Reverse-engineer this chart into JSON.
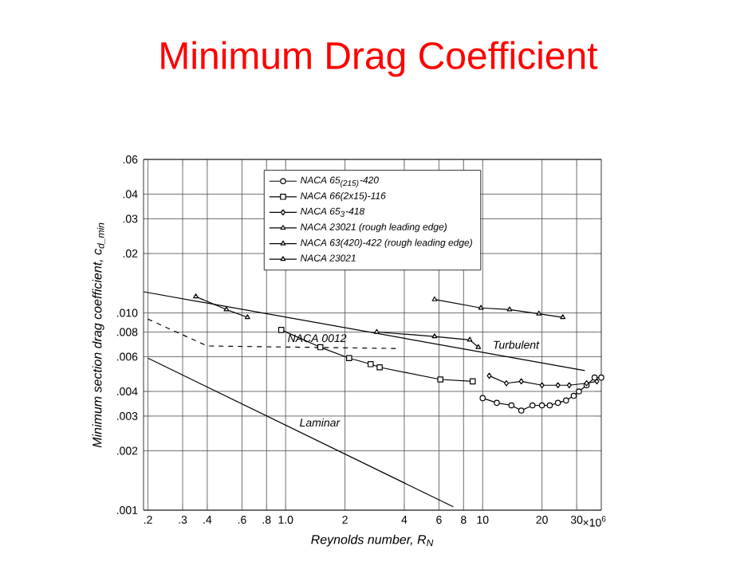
{
  "chart_data": {
    "type": "line",
    "title": "Minimum Drag Coefficient",
    "xlabel": "Reynolds number, R$_{N}$",
    "ylabel": "Minimum section drag coefficient, c$_{d_min}$",
    "log": "xy",
    "grid": true,
    "legend": "top",
    "xlim": [
      0.19,
      40
    ],
    "ylim": [
      0.001,
      0.06
    ],
    "xticks": [
      {
        "value": 0.2,
        "label": ".2"
      },
      {
        "value": 0.3,
        "label": ".3"
      },
      {
        "value": 0.4,
        "label": ".4"
      },
      {
        "value": 0.6,
        "label": ".6"
      },
      {
        "value": 0.8,
        "label": ".8"
      },
      {
        "value": 1,
        "label": "1.0"
      },
      2,
      4,
      6,
      8,
      10,
      20,
      30
    ],
    "yticks": [
      {
        "value": 0.001,
        "label": ".001"
      },
      {
        "value": 0.002,
        "label": ".002"
      },
      {
        "value": 0.003,
        "label": ".003"
      },
      {
        "value": 0.004,
        "label": ".004"
      },
      {
        "value": 0.006,
        "label": ".006"
      },
      {
        "value": 0.008,
        "label": ".008"
      },
      {
        "value": 0.01,
        "label": ".010"
      },
      {
        "value": 0.02,
        "label": ".02"
      },
      {
        "value": 0.03,
        "label": ".03"
      },
      {
        "value": 0.04,
        "label": ".04"
      },
      {
        "value": 0.06,
        "label": ".06"
      }
    ],
    "series": [
      {
        "name": "NACA 65$_{(215)}$-420",
        "color": "#000000",
        "marker": "circle",
        "x": [
          10,
          11.8,
          14,
          15.7,
          17.9,
          20,
          21.9,
          24.1,
          26.5,
          29,
          30.8,
          33.7,
          37,
          40
        ],
        "values": [
          0.0037,
          0.0035,
          0.0034,
          0.0032,
          0.0034,
          0.0034,
          0.0034,
          0.0035,
          0.0036,
          0.0038,
          0.004,
          0.0043,
          0.0047,
          0.0047
        ]
      },
      {
        "name": "NACA 66(2x15)-116",
        "color": "#000000",
        "marker": "square",
        "x": [
          0.95,
          1.5,
          2.1,
          2.7,
          3.0,
          6.1,
          8.9
        ],
        "values": [
          0.0082,
          0.0067,
          0.0059,
          0.0055,
          0.0053,
          0.0046,
          0.0045
        ]
      },
      {
        "name": "NACA 65$_{3}$-418",
        "color": "#000000",
        "marker": "diamond",
        "x": [
          10.8,
          13.2,
          15.7,
          20,
          24.1,
          27.5,
          33.7,
          38
        ],
        "values": [
          0.0048,
          0.0044,
          0.0045,
          0.0043,
          0.0043,
          0.0043,
          0.0044,
          0.0045
        ]
      },
      {
        "name": "NACA 23021 (rough leading edge)",
        "color": "#000000",
        "marker": "triangle",
        "x": [
          5.7,
          9.8,
          13.7,
          19.3,
          25.5
        ],
        "values": [
          0.0117,
          0.0106,
          0.0104,
          0.0099,
          0.0095
        ]
      },
      {
        "name": "NACA 63(420)-422 (rough leading edge)",
        "color": "#000000",
        "marker": "triangle",
        "x": [
          2.9,
          5.7,
          8.6,
          9.5
        ],
        "values": [
          0.008,
          0.0076,
          0.0073,
          0.0067
        ]
      },
      {
        "name": "NACA 23021",
        "color": "#000000",
        "marker": "triangle",
        "x": [
          0.35,
          0.5,
          0.64
        ],
        "values": [
          0.0121,
          0.0104,
          0.0095
        ]
      },
      {
        "color": "#000000",
        "marker": "none",
        "x": [
          0.2,
          7.1
        ],
        "values": [
          0.0059,
          0.00104
        ]
      },
      {
        "color": "#000000",
        "marker": "none",
        "x": [
          0.19,
          33
        ],
        "values": [
          0.0128,
          0.0051
        ]
      },
      {
        "color": "#000000",
        "marker": "none",
        "line_style": "dashed",
        "x": [
          0.2,
          0.4,
          3.7
        ],
        "values": [
          0.0093,
          0.0068,
          0.0066
        ]
      }
    ],
    "annotations": [
      {
        "text": "Turbulent",
        "x": 11,
        "y": 0.0062
      },
      {
        "text": "Laminar",
        "x": 1.15,
        "y": 0.0025
      },
      {
        "text": "NACA 0012",
        "x": 1.0,
        "y": 0.0067
      },
      "×10$^{6}$"
    ]
  }
}
